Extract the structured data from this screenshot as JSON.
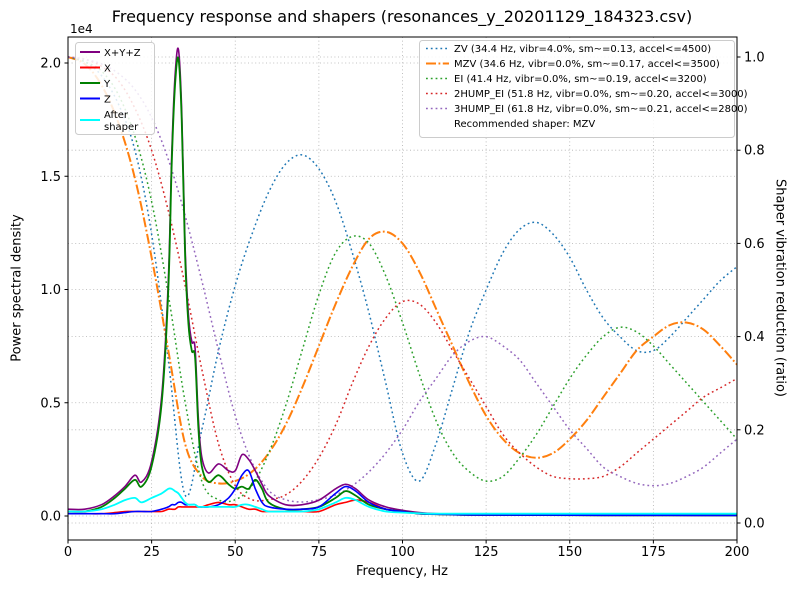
{
  "title": "Frequency response and shapers (resonances_y_20201129_184323.csv)",
  "axes": {
    "x": {
      "label": "Frequency, Hz",
      "min": 0,
      "max": 200,
      "ticks": [
        0,
        25,
        50,
        75,
        100,
        125,
        150,
        175,
        200
      ],
      "tick_labels": [
        "0",
        "25",
        "50",
        "75",
        "100",
        "125",
        "150",
        "175",
        "200"
      ]
    },
    "y_left": {
      "label": "Power spectral density",
      "offset_text": "1e4",
      "unit": "1e4",
      "ticks": [
        0.0,
        0.5,
        1.0,
        1.5,
        2.0
      ],
      "tick_labels": [
        "0.0",
        "0.5",
        "1.0",
        "1.5",
        "2.0"
      ]
    },
    "y_right": {
      "label": "Shaper vibration reduction (ratio)",
      "ticks": [
        0.0,
        0.2,
        0.4,
        0.6,
        0.8,
        1.0
      ],
      "tick_labels": [
        "0.0",
        "0.2",
        "0.4",
        "0.6",
        "0.8",
        "1.0"
      ]
    }
  },
  "legend_psd": {
    "items": [
      {
        "label": "X+Y+Z",
        "color": "#800080",
        "style": "solid"
      },
      {
        "label": "X",
        "color": "#ff0000",
        "style": "solid"
      },
      {
        "label": "Y",
        "color": "#008000",
        "style": "solid"
      },
      {
        "label": "Z",
        "color": "#0000ff",
        "style": "solid"
      },
      {
        "label": "After shaper",
        "label_lines": [
          "After",
          "shaper"
        ],
        "color": "#00ffff",
        "style": "solid"
      }
    ]
  },
  "legend_shapers": {
    "items": [
      {
        "label": "ZV (34.4 Hz, vibr=4.0%, sm~=0.13, accel<=4500)",
        "color": "#1f77b4",
        "style": "dotted"
      },
      {
        "label": "MZV (34.6 Hz, vibr=0.0%, sm~=0.17, accel<=3500)",
        "color": "#ff7f0e",
        "style": "dashdot"
      },
      {
        "label": "EI (41.4 Hz, vibr=0.0%, sm~=0.19, accel<=3200)",
        "color": "#2ca02c",
        "style": "dotted"
      },
      {
        "label": "2HUMP_EI (51.8 Hz, vibr=0.0%, sm~=0.20, accel<=3000)",
        "color": "#d62728",
        "style": "dotted"
      },
      {
        "label": "3HUMP_EI (61.8 Hz, vibr=0.0%, sm~=0.21, accel<=2800)",
        "color": "#9467bd",
        "style": "dotted"
      }
    ],
    "note": "Recommended shaper: MZV"
  },
  "recommended_shaper": "MZV",
  "chart_data": {
    "type": "line",
    "x_unit": "Hz",
    "psd_scale": "1e4",
    "xlim": [
      0,
      200
    ],
    "ylim_left_1e4": [
      0,
      2.1
    ],
    "ylim_right": [
      0,
      1.04
    ],
    "grid": true,
    "legend_positions": [
      "upper left",
      "upper right"
    ],
    "series": [
      {
        "name": "ZV",
        "axis": "ratio",
        "color": "#1f77b4",
        "style": "dotted",
        "width": 1.5,
        "x": [
          0,
          5,
          10,
          15,
          20,
          25,
          30,
          35,
          40,
          45,
          50,
          55,
          60,
          65,
          70,
          75,
          80,
          85,
          90,
          95,
          100,
          105,
          110,
          115,
          120,
          125,
          130,
          135,
          140,
          145,
          150,
          155,
          160,
          165,
          170,
          175,
          180,
          185,
          190,
          195,
          200
        ],
        "y": [
          1.0,
          0.99,
          0.96,
          0.9,
          0.8,
          0.62,
          0.35,
          0.06,
          0.2,
          0.37,
          0.51,
          0.62,
          0.71,
          0.77,
          0.79,
          0.76,
          0.69,
          0.58,
          0.45,
          0.3,
          0.15,
          0.09,
          0.17,
          0.29,
          0.41,
          0.5,
          0.58,
          0.63,
          0.645,
          0.62,
          0.57,
          0.5,
          0.44,
          0.4,
          0.37,
          0.37,
          0.4,
          0.44,
          0.48,
          0.52,
          0.55
        ]
      },
      {
        "name": "MZV",
        "axis": "ratio",
        "color": "#ff7f0e",
        "style": "dashdot",
        "width": 2,
        "x": [
          0,
          5,
          10,
          15,
          20,
          25,
          30,
          35,
          40,
          45,
          50,
          55,
          60,
          65,
          70,
          75,
          80,
          85,
          90,
          95,
          100,
          105,
          110,
          115,
          120,
          125,
          130,
          135,
          140,
          145,
          150,
          155,
          160,
          165,
          170,
          175,
          180,
          185,
          190,
          195,
          200
        ],
        "y": [
          1.0,
          0.985,
          0.94,
          0.86,
          0.74,
          0.57,
          0.37,
          0.17,
          0.1,
          0.085,
          0.09,
          0.11,
          0.15,
          0.21,
          0.29,
          0.38,
          0.47,
          0.55,
          0.61,
          0.625,
          0.6,
          0.54,
          0.46,
          0.38,
          0.3,
          0.23,
          0.18,
          0.15,
          0.14,
          0.15,
          0.18,
          0.22,
          0.27,
          0.32,
          0.37,
          0.4,
          0.425,
          0.43,
          0.415,
          0.38,
          0.34
        ]
      },
      {
        "name": "EI",
        "axis": "ratio",
        "color": "#2ca02c",
        "style": "dotted",
        "width": 1.5,
        "x": [
          0,
          5,
          10,
          15,
          20,
          25,
          30,
          35,
          40,
          45,
          50,
          55,
          60,
          65,
          70,
          75,
          80,
          85,
          90,
          95,
          100,
          105,
          110,
          115,
          120,
          125,
          130,
          135,
          140,
          145,
          150,
          155,
          160,
          165,
          170,
          175,
          180,
          185,
          190,
          195,
          200
        ],
        "y": [
          1.0,
          0.99,
          0.97,
          0.92,
          0.83,
          0.69,
          0.49,
          0.26,
          0.09,
          0.05,
          0.05,
          0.08,
          0.15,
          0.25,
          0.37,
          0.49,
          0.58,
          0.615,
          0.6,
          0.53,
          0.43,
          0.32,
          0.22,
          0.15,
          0.11,
          0.09,
          0.1,
          0.14,
          0.19,
          0.25,
          0.31,
          0.36,
          0.4,
          0.42,
          0.41,
          0.38,
          0.34,
          0.3,
          0.26,
          0.22,
          0.18
        ]
      },
      {
        "name": "2HUMP_EI",
        "axis": "ratio",
        "color": "#d62728",
        "style": "dotted",
        "width": 1.5,
        "x": [
          0,
          5,
          10,
          15,
          20,
          25,
          30,
          35,
          40,
          45,
          50,
          55,
          60,
          65,
          70,
          75,
          80,
          85,
          90,
          95,
          100,
          105,
          110,
          115,
          120,
          125,
          130,
          135,
          140,
          145,
          150,
          155,
          160,
          165,
          170,
          175,
          180,
          185,
          190,
          195,
          200
        ],
        "y": [
          1.0,
          0.995,
          0.98,
          0.95,
          0.89,
          0.8,
          0.67,
          0.51,
          0.33,
          0.17,
          0.08,
          0.05,
          0.05,
          0.06,
          0.09,
          0.14,
          0.21,
          0.3,
          0.38,
          0.44,
          0.475,
          0.47,
          0.43,
          0.37,
          0.31,
          0.25,
          0.19,
          0.15,
          0.12,
          0.1,
          0.095,
          0.095,
          0.1,
          0.12,
          0.15,
          0.18,
          0.21,
          0.24,
          0.27,
          0.29,
          0.31
        ]
      },
      {
        "name": "3HUMP_EI",
        "axis": "ratio",
        "color": "#9467bd",
        "style": "dotted",
        "width": 1.5,
        "x": [
          0,
          5,
          10,
          15,
          20,
          25,
          30,
          35,
          40,
          45,
          50,
          55,
          60,
          65,
          70,
          75,
          80,
          85,
          90,
          95,
          100,
          105,
          110,
          115,
          120,
          125,
          130,
          135,
          140,
          145,
          150,
          155,
          160,
          165,
          170,
          175,
          180,
          185,
          190,
          195,
          200
        ],
        "y": [
          1.0,
          0.995,
          0.985,
          0.965,
          0.93,
          0.87,
          0.78,
          0.66,
          0.52,
          0.37,
          0.23,
          0.13,
          0.07,
          0.05,
          0.045,
          0.05,
          0.06,
          0.08,
          0.11,
          0.15,
          0.2,
          0.26,
          0.31,
          0.36,
          0.39,
          0.4,
          0.38,
          0.35,
          0.3,
          0.25,
          0.2,
          0.16,
          0.12,
          0.1,
          0.085,
          0.08,
          0.085,
          0.1,
          0.12,
          0.15,
          0.18
        ]
      },
      {
        "name": "X+Y+Z",
        "axis": "psd",
        "color": "#800080",
        "style": "solid",
        "width": 1.6,
        "x": [
          0,
          5,
          10,
          14,
          17,
          20,
          22,
          25,
          28,
          30,
          31,
          32,
          33,
          34,
          35,
          36,
          37,
          38,
          39,
          40,
          42,
          45,
          48,
          50,
          52,
          54,
          56,
          58,
          60,
          65,
          70,
          75,
          80,
          83,
          86,
          90,
          95,
          100,
          105,
          110,
          120,
          140,
          160,
          180,
          200
        ],
        "y": [
          0.03,
          0.03,
          0.05,
          0.09,
          0.13,
          0.18,
          0.15,
          0.24,
          0.53,
          1.04,
          1.59,
          1.94,
          2.06,
          1.79,
          1.19,
          0.89,
          0.77,
          0.74,
          0.42,
          0.26,
          0.19,
          0.23,
          0.2,
          0.2,
          0.27,
          0.25,
          0.2,
          0.14,
          0.09,
          0.05,
          0.05,
          0.07,
          0.12,
          0.14,
          0.12,
          0.07,
          0.04,
          0.025,
          0.015,
          0.01,
          0.008,
          0.006,
          0.005,
          0.005,
          0.004
        ]
      },
      {
        "name": "X",
        "axis": "psd",
        "color": "#ff0000",
        "style": "solid",
        "width": 1.6,
        "x": [
          0,
          5,
          10,
          14,
          17,
          20,
          22,
          25,
          28,
          30,
          31,
          32,
          33,
          34,
          35,
          36,
          37,
          38,
          39,
          40,
          42,
          45,
          48,
          50,
          52,
          54,
          56,
          58,
          60,
          65,
          70,
          75,
          80,
          83,
          86,
          90,
          95,
          100,
          105,
          110,
          120,
          140,
          160,
          180,
          200
        ],
        "y": [
          0.01,
          0.01,
          0.01,
          0.015,
          0.02,
          0.02,
          0.02,
          0.02,
          0.02,
          0.03,
          0.03,
          0.03,
          0.04,
          0.04,
          0.04,
          0.04,
          0.04,
          0.04,
          0.04,
          0.04,
          0.05,
          0.06,
          0.05,
          0.05,
          0.04,
          0.03,
          0.03,
          0.02,
          0.02,
          0.02,
          0.02,
          0.02,
          0.05,
          0.06,
          0.07,
          0.06,
          0.03,
          0.02,
          0.01,
          0.008,
          0.005,
          0.004,
          0.003,
          0.003,
          0.002
        ]
      },
      {
        "name": "Y",
        "axis": "psd",
        "color": "#008000",
        "style": "solid",
        "width": 1.8,
        "x": [
          0,
          5,
          10,
          14,
          17,
          20,
          22,
          25,
          28,
          30,
          31,
          32,
          33,
          34,
          35,
          36,
          37,
          38,
          39,
          40,
          42,
          45,
          48,
          50,
          52,
          54,
          56,
          58,
          60,
          65,
          70,
          75,
          80,
          83,
          86,
          90,
          95,
          100,
          105,
          110,
          120,
          140,
          160,
          180,
          200
        ],
        "y": [
          0.02,
          0.02,
          0.04,
          0.08,
          0.12,
          0.16,
          0.13,
          0.22,
          0.5,
          1.0,
          1.55,
          1.9,
          2.02,
          1.75,
          1.15,
          0.85,
          0.73,
          0.7,
          0.38,
          0.22,
          0.15,
          0.18,
          0.14,
          0.12,
          0.13,
          0.12,
          0.16,
          0.12,
          0.06,
          0.03,
          0.03,
          0.04,
          0.08,
          0.11,
          0.09,
          0.05,
          0.03,
          0.02,
          0.01,
          0.008,
          0.005,
          0.004,
          0.003,
          0.003,
          0.002
        ]
      },
      {
        "name": "Z",
        "axis": "psd",
        "color": "#0000ff",
        "style": "solid",
        "width": 1.6,
        "x": [
          0,
          5,
          10,
          14,
          17,
          20,
          22,
          25,
          28,
          30,
          31,
          32,
          33,
          34,
          35,
          36,
          37,
          38,
          39,
          40,
          42,
          45,
          48,
          50,
          52,
          54,
          56,
          58,
          60,
          65,
          70,
          75,
          80,
          83,
          86,
          90,
          95,
          100,
          105,
          110,
          120,
          140,
          160,
          180,
          200
        ],
        "y": [
          0.01,
          0.01,
          0.01,
          0.01,
          0.015,
          0.02,
          0.02,
          0.02,
          0.03,
          0.04,
          0.05,
          0.05,
          0.06,
          0.06,
          0.05,
          0.05,
          0.05,
          0.05,
          0.04,
          0.04,
          0.04,
          0.05,
          0.08,
          0.12,
          0.18,
          0.2,
          0.12,
          0.06,
          0.04,
          0.03,
          0.03,
          0.04,
          0.1,
          0.13,
          0.11,
          0.06,
          0.03,
          0.02,
          0.01,
          0.008,
          0.005,
          0.004,
          0.003,
          0.003,
          0.002
        ]
      },
      {
        "name": "After shaper",
        "axis": "psd",
        "color": "#00ffff",
        "style": "solid",
        "width": 1.8,
        "x": [
          0,
          5,
          10,
          14,
          17,
          20,
          22,
          25,
          28,
          30,
          31,
          32,
          33,
          34,
          35,
          36,
          37,
          38,
          39,
          40,
          42,
          45,
          48,
          50,
          52,
          54,
          56,
          58,
          60,
          65,
          70,
          75,
          80,
          83,
          86,
          90,
          95,
          100,
          105,
          110,
          120,
          140,
          160,
          180,
          200
        ],
        "y": [
          0.02,
          0.02,
          0.03,
          0.05,
          0.07,
          0.08,
          0.06,
          0.08,
          0.1,
          0.12,
          0.12,
          0.11,
          0.1,
          0.08,
          0.06,
          0.05,
          0.05,
          0.05,
          0.04,
          0.04,
          0.04,
          0.04,
          0.04,
          0.04,
          0.05,
          0.05,
          0.04,
          0.03,
          0.02,
          0.02,
          0.02,
          0.03,
          0.06,
          0.08,
          0.07,
          0.04,
          0.02,
          0.015,
          0.012,
          0.01,
          0.01,
          0.01,
          0.01,
          0.01,
          0.01
        ]
      }
    ]
  }
}
